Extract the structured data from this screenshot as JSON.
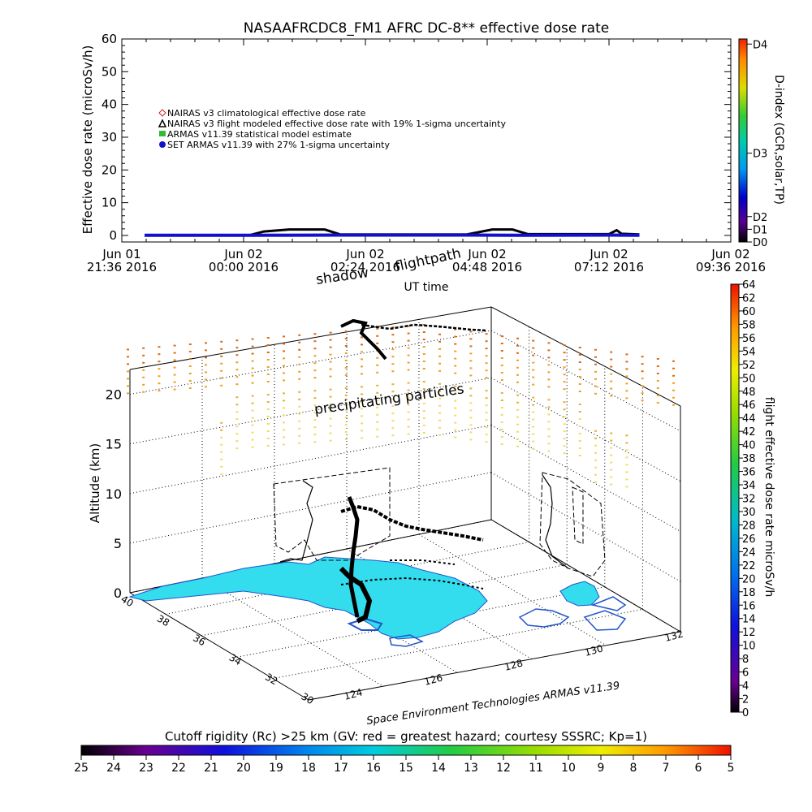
{
  "title": "NASAAFRCDC8_FM1 AFRC DC-8** effective dose rate",
  "credit": "Space Environment Technologies ARMAS v11.39",
  "chart_data": [
    {
      "type": "line",
      "ylabel": "Effective dose rate (microSv/h)",
      "xlabel": "UT time",
      "ylim": [
        0,
        60
      ],
      "yticks": [
        "0",
        "10",
        "20",
        "30",
        "40",
        "50",
        "60"
      ],
      "xticks": [
        {
          "top": "Jun 01",
          "bottom": "21:36 2016"
        },
        {
          "top": "Jun 02",
          "bottom": "00:00 2016"
        },
        {
          "top": "Jun 02",
          "bottom": "02:24 2016"
        },
        {
          "top": "Jun 02",
          "bottom": "04:48 2016"
        },
        {
          "top": "Jun 02",
          "bottom": "07:12 2016"
        },
        {
          "top": "Jun 02",
          "bottom": "09:36 2016"
        }
      ],
      "xlim_hours": [
        0,
        12
      ],
      "legend": [
        {
          "label": "NAIRAS v3 climatological effective dose rate",
          "color": "#cc2222",
          "marker": "diamond"
        },
        {
          "label": "NAIRAS v3 flight modeled effective dose rate with 19% 1-sigma uncertainty",
          "color": "#000000",
          "marker": "triangle"
        },
        {
          "label": "ARMAS v11.39 statistical model estimate",
          "color": "#33bb33",
          "marker": "square"
        },
        {
          "label": "SET ARMAS v11.39 with 27% 1-sigma uncertainty",
          "color": "#1111cc",
          "marker": "circle"
        }
      ],
      "series": [
        {
          "name": "NAIRAS v3 flight modeled effective dose rate with 19% 1-sigma uncertainty",
          "x": [
            0.45,
            2.5,
            2.8,
            3.3,
            4.0,
            4.3,
            6.8,
            7.3,
            7.7,
            8.0,
            9.6,
            9.75,
            9.85,
            10.2
          ],
          "y": [
            0,
            0,
            1.2,
            1.8,
            1.8,
            0.3,
            0.3,
            1.8,
            1.8,
            0.4,
            0.4,
            1.6,
            0.5,
            0.3
          ]
        },
        {
          "name": "SET ARMAS v11.39 with 27% 1-sigma uncertainty",
          "x": [
            0.45,
            2.5,
            4.3,
            6.8,
            8.0,
            9.6,
            10.2
          ],
          "y": [
            0.05,
            0.05,
            0.1,
            0.1,
            0.05,
            0.1,
            0.05
          ]
        }
      ]
    },
    {
      "type": "scatter",
      "ylabel": "Altitude (km)",
      "zticks": [
        "0",
        "5",
        "10",
        "15",
        "20"
      ],
      "lat_ticks": [
        "40",
        "38",
        "36",
        "34",
        "32",
        "30"
      ],
      "lon_ticks": [
        "124",
        "126",
        "128",
        "130",
        "132"
      ],
      "annotations": [
        "shadow",
        "flightpath",
        "precipitating particles"
      ],
      "grid": true
    }
  ],
  "colorbars": {
    "dindex": {
      "label": "D-index (GCR,solar,TP)",
      "ticks": [
        "D0",
        "D1",
        "D2",
        "D3",
        "D4"
      ],
      "values": [
        0,
        0.25,
        0.5,
        1.75,
        3.9
      ]
    },
    "dose": {
      "label": "flight effective dose rate microSv/h",
      "ticks": [
        "0",
        "2",
        "4",
        "6",
        "8",
        "10",
        "12",
        "14",
        "16",
        "18",
        "20",
        "22",
        "24",
        "26",
        "28",
        "30",
        "32",
        "34",
        "36",
        "38",
        "40",
        "42",
        "44",
        "46",
        "48",
        "50",
        "52",
        "54",
        "56",
        "58",
        "60",
        "62",
        "64"
      ]
    },
    "cutoff": {
      "label": "Cutoff rigidity (Rc) >25 km (GV: red = greatest hazard; courtesy SSSRC; Kp=1)",
      "ticks": [
        "25",
        "24",
        "23",
        "22",
        "21",
        "20",
        "19",
        "18",
        "17",
        "16",
        "15",
        "14",
        "13",
        "12",
        "11",
        "10",
        "9",
        "8",
        "7",
        "6",
        "5"
      ]
    }
  },
  "colors": {
    "land": "#33ddee",
    "coast": "#2255cc",
    "flight": "#000000"
  }
}
